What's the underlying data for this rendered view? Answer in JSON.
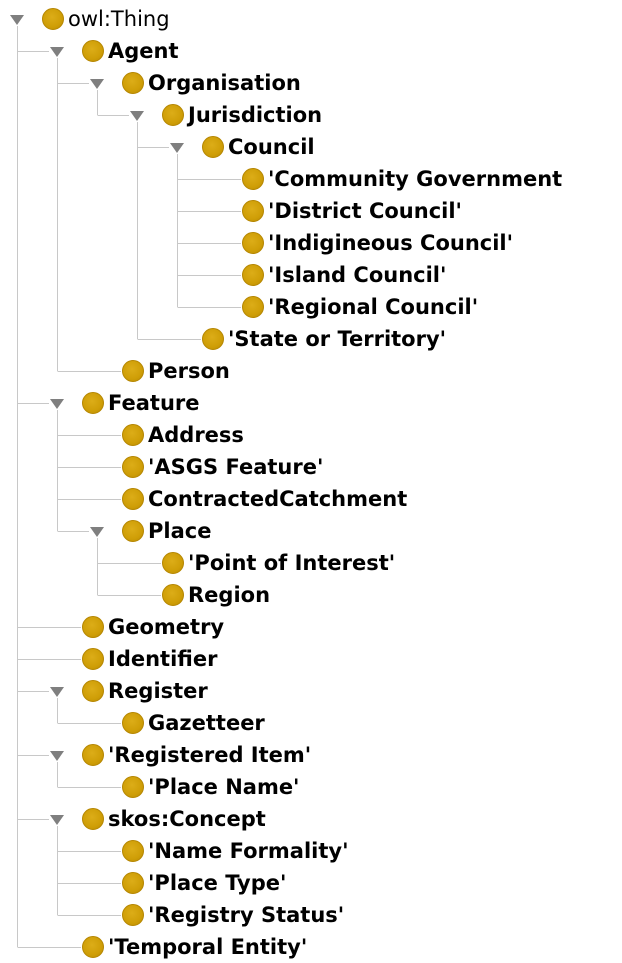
{
  "tree": [
    {
      "label": "owl:Thing",
      "level": 0,
      "expanded": true,
      "bold": false
    },
    {
      "label": "Agent",
      "level": 1,
      "expanded": true,
      "bold": true
    },
    {
      "label": "Organisation",
      "level": 2,
      "expanded": true,
      "bold": true
    },
    {
      "label": "Jurisdiction",
      "level": 3,
      "expanded": true,
      "bold": true
    },
    {
      "label": "Council",
      "level": 4,
      "expanded": true,
      "bold": true
    },
    {
      "label": "'Community Government",
      "level": 5,
      "expanded": false,
      "bold": true
    },
    {
      "label": "'District Council'",
      "level": 5,
      "expanded": false,
      "bold": true
    },
    {
      "label": "'Indigineous Council'",
      "level": 5,
      "expanded": false,
      "bold": true
    },
    {
      "label": "'Island Council'",
      "level": 5,
      "expanded": false,
      "bold": true
    },
    {
      "label": "'Regional Council'",
      "level": 5,
      "expanded": false,
      "bold": true
    },
    {
      "label": "'State or Territory'",
      "level": 4,
      "expanded": false,
      "bold": true
    },
    {
      "label": "Person",
      "level": 2,
      "expanded": false,
      "bold": true
    },
    {
      "label": "Feature",
      "level": 1,
      "expanded": true,
      "bold": true
    },
    {
      "label": "Address",
      "level": 2,
      "expanded": false,
      "bold": true
    },
    {
      "label": "'ASGS Feature'",
      "level": 2,
      "expanded": false,
      "bold": true
    },
    {
      "label": "ContractedCatchment",
      "level": 2,
      "expanded": false,
      "bold": true
    },
    {
      "label": "Place",
      "level": 2,
      "expanded": true,
      "bold": true
    },
    {
      "label": "'Point of Interest'",
      "level": 3,
      "expanded": false,
      "bold": true
    },
    {
      "label": "Region",
      "level": 3,
      "expanded": false,
      "bold": true
    },
    {
      "label": "Geometry",
      "level": 1,
      "expanded": false,
      "bold": true
    },
    {
      "label": "Identifier",
      "level": 1,
      "expanded": false,
      "bold": true
    },
    {
      "label": "Register",
      "level": 1,
      "expanded": true,
      "bold": true
    },
    {
      "label": "Gazetteer",
      "level": 2,
      "expanded": false,
      "bold": true
    },
    {
      "label": "'Registered Item'",
      "level": 1,
      "expanded": true,
      "bold": true
    },
    {
      "label": "'Place Name'",
      "level": 2,
      "expanded": false,
      "bold": true
    },
    {
      "label": "skos:Concept",
      "level": 1,
      "expanded": true,
      "bold": true
    },
    {
      "label": "'Name Formality'",
      "level": 2,
      "expanded": false,
      "bold": true
    },
    {
      "label": "'Place Type'",
      "level": 2,
      "expanded": false,
      "bold": true
    },
    {
      "label": "'Registry Status'",
      "level": 2,
      "expanded": false,
      "bold": true
    },
    {
      "label": "'Temporal Entity'",
      "level": 1,
      "expanded": false,
      "bold": true
    }
  ],
  "colors": {
    "node": "#cf9e07",
    "guide": "#c8c8c8",
    "toggle": "#7f7f7f",
    "text": "#000000"
  },
  "icons": {
    "node": "class-circle-icon",
    "expanded": "triangle-down-icon"
  }
}
